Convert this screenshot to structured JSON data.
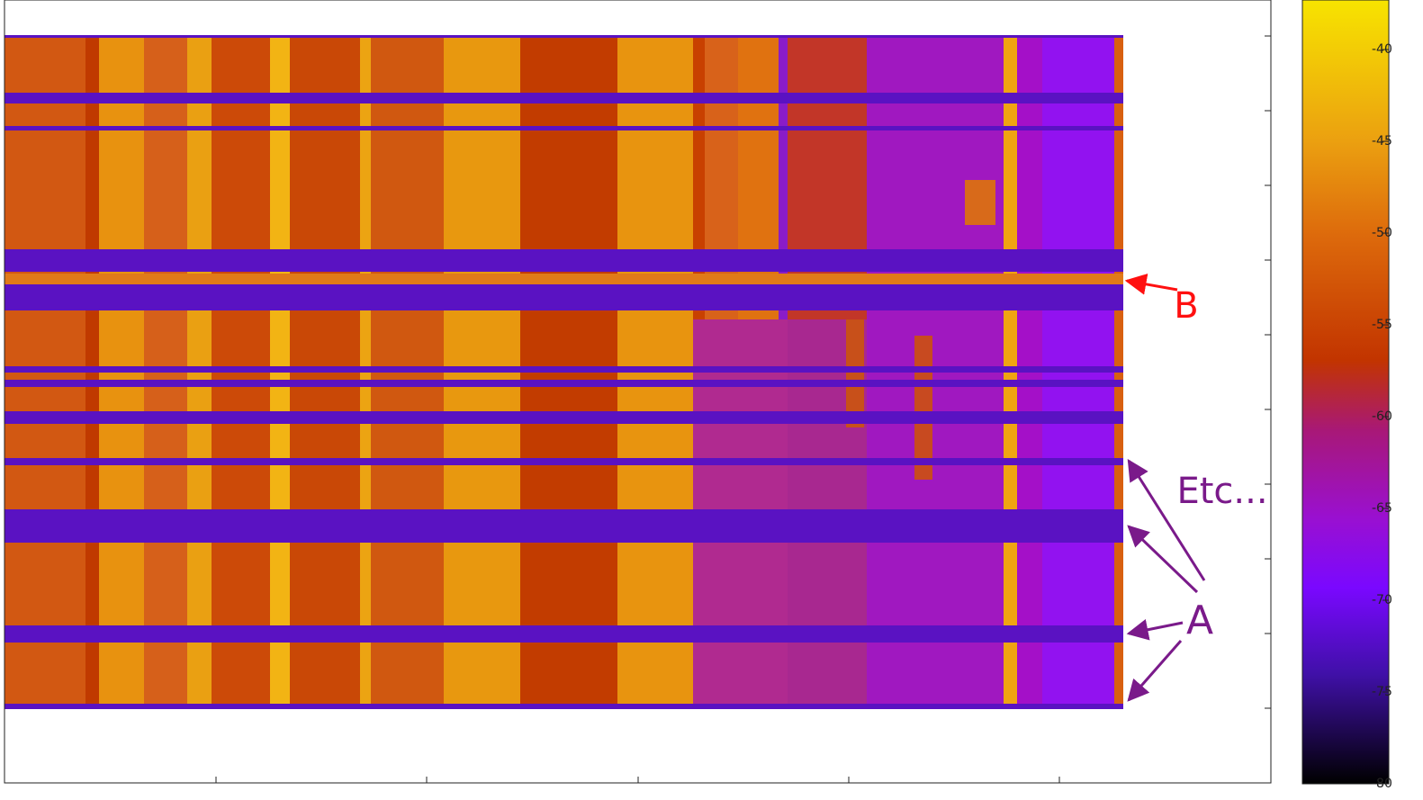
{
  "chart_data": {
    "type": "heatmap",
    "colorbar": {
      "clim": [
        -80,
        -37.3
      ],
      "ticks": [
        -40,
        -45,
        -50,
        -55,
        -60,
        -65,
        -70,
        -75,
        -80
      ]
    },
    "annotations": {
      "a": "A",
      "b": "B",
      "etc": "Etc..."
    }
  }
}
